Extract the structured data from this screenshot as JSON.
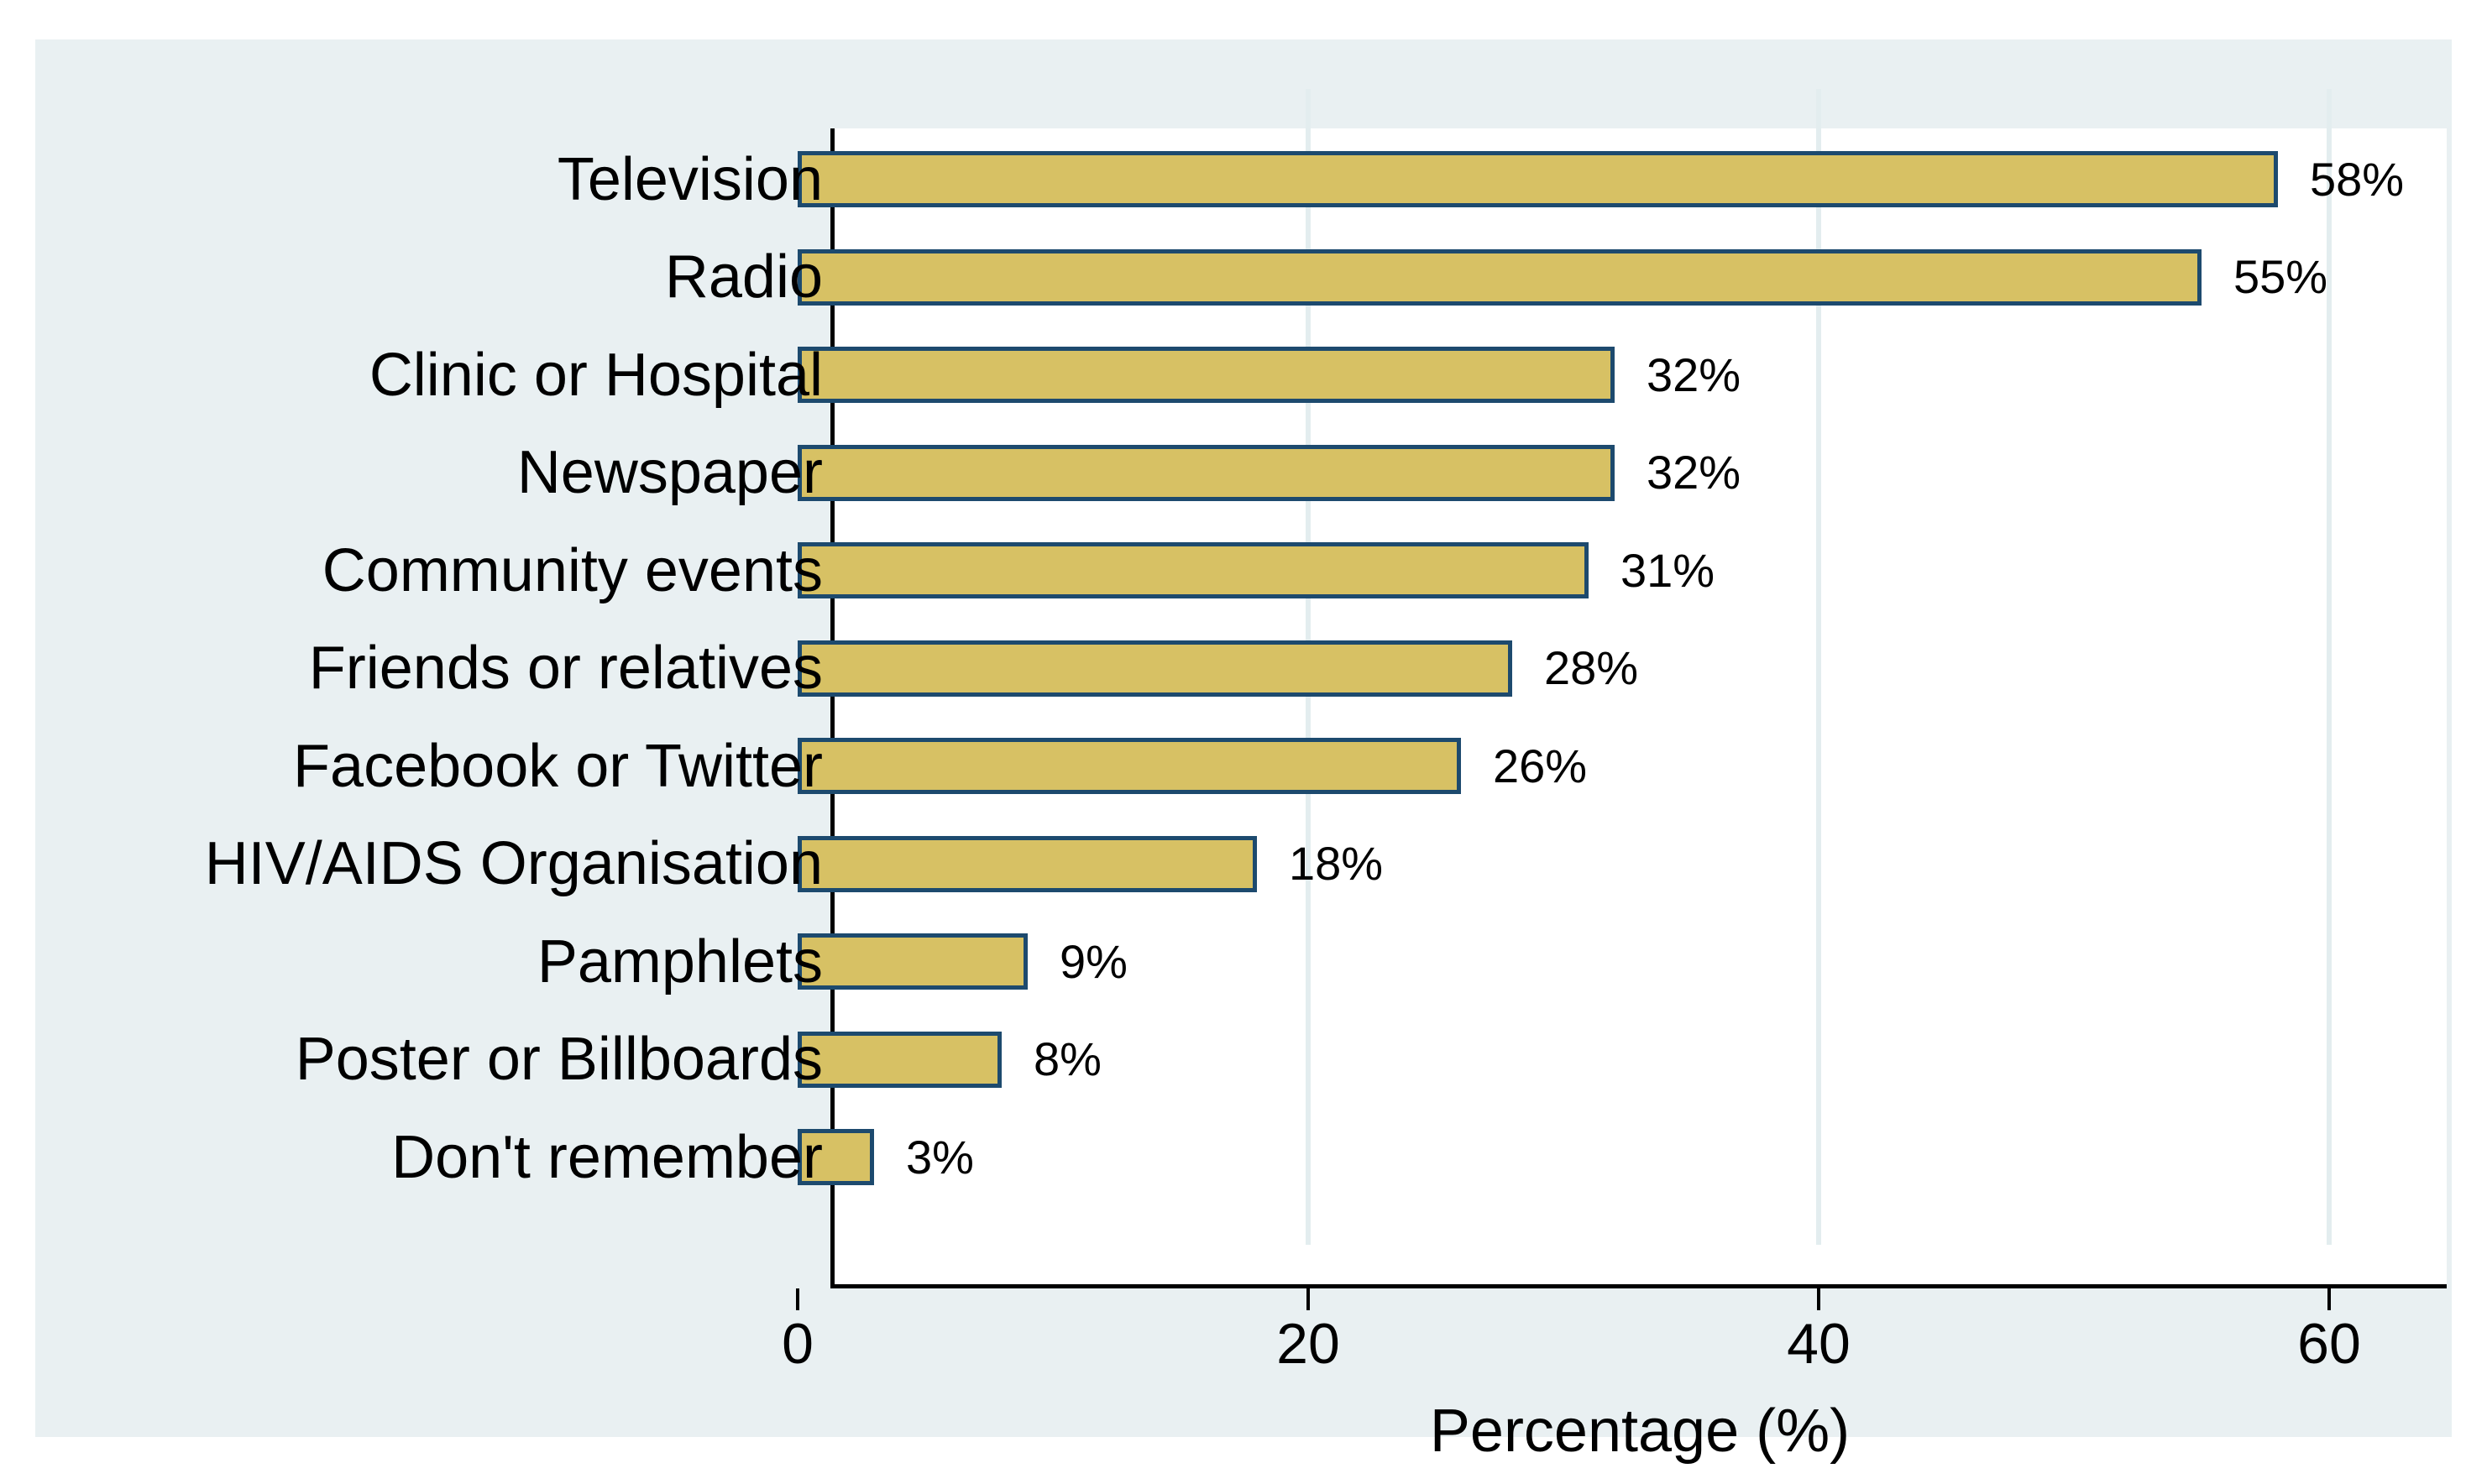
{
  "chart_data": {
    "type": "bar",
    "orientation": "horizontal",
    "title": "",
    "xlabel": "Percentage (%)",
    "ylabel": "",
    "categories": [
      "Television",
      "Radio",
      "Clinic or Hospital",
      "Newspaper",
      "Community events",
      "Friends or relatives",
      "Facebook or Twitter",
      "HIV/AIDS Organisation",
      "Pamphlets",
      "Poster or Billboards",
      "Don't remember"
    ],
    "values": [
      58,
      55,
      32,
      32,
      31,
      28,
      26,
      18,
      9,
      8,
      3
    ],
    "value_labels": [
      "58%",
      "55%",
      "32%",
      "32%",
      "31%",
      "28%",
      "26%",
      "18%",
      "9%",
      "8%",
      "3%"
    ],
    "xlim": [
      0,
      63
    ],
    "xticks": [
      0,
      20,
      40,
      60
    ],
    "xtick_labels": [
      "0",
      "20",
      "40",
      "60"
    ],
    "grid": "vertical gridlines at 20, 40, 60",
    "legend": "none",
    "colors": {
      "bar_fill": "#d7c164",
      "bar_border": "#1d4a6e",
      "panel_background": "#e9f0f2",
      "plot_background": "#ffffff",
      "outer_background": "#ffffff",
      "axis_line": "#000000",
      "gridline": "#e3edef",
      "text": "#000000"
    }
  }
}
